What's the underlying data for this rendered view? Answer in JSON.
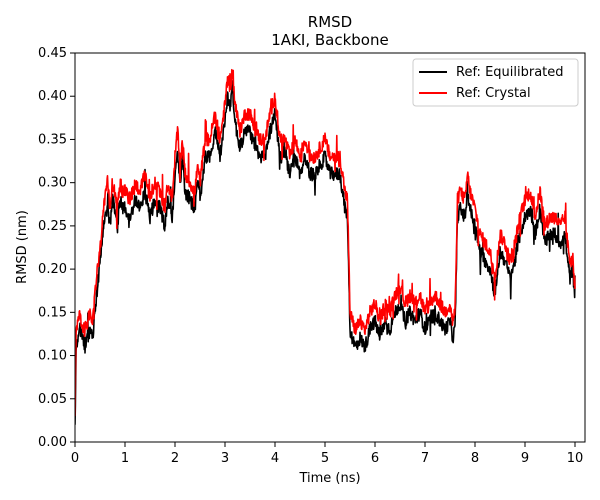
{
  "chart_data": {
    "type": "line",
    "title": "RMSD",
    "subtitle": "1AKI, Backbone",
    "xlabel": "Time (ns)",
    "ylabel": "RMSD (nm)",
    "xlim": [
      0,
      10.2
    ],
    "ylim": [
      0,
      0.45
    ],
    "xticks": [
      0,
      1,
      2,
      3,
      4,
      5,
      6,
      7,
      8,
      9,
      10
    ],
    "yticks": [
      0.0,
      0.05,
      0.1,
      0.15,
      0.2,
      0.25,
      0.3,
      0.35,
      0.4,
      0.45
    ],
    "xtick_labels": [
      "0",
      "1",
      "2",
      "3",
      "4",
      "5",
      "6",
      "7",
      "8",
      "9",
      "10"
    ],
    "ytick_labels": [
      "0.00",
      "0.05",
      "0.10",
      "0.15",
      "0.20",
      "0.25",
      "0.30",
      "0.35",
      "0.40",
      "0.45"
    ],
    "grid": false,
    "legend_position": "top-right",
    "series": [
      {
        "name": "Ref: Equilibrated",
        "color": "#000000",
        "x": [
          0,
          0.02,
          0.05,
          0.1,
          0.15,
          0.2,
          0.25,
          0.3,
          0.35,
          0.4,
          0.45,
          0.5,
          0.55,
          0.6,
          0.65,
          0.7,
          0.75,
          0.8,
          0.85,
          0.9,
          0.95,
          1.0,
          1.1,
          1.2,
          1.3,
          1.4,
          1.5,
          1.6,
          1.7,
          1.8,
          1.85,
          1.9,
          1.95,
          2.0,
          2.05,
          2.1,
          2.15,
          2.2,
          2.3,
          2.4,
          2.45,
          2.5,
          2.6,
          2.7,
          2.8,
          2.9,
          3.0,
          3.05,
          3.1,
          3.15,
          3.2,
          3.3,
          3.4,
          3.5,
          3.6,
          3.7,
          3.8,
          3.9,
          4.0,
          4.1,
          4.2,
          4.3,
          4.4,
          4.5,
          4.6,
          4.7,
          4.8,
          4.9,
          5.0,
          5.1,
          5.2,
          5.3,
          5.4,
          5.45,
          5.5,
          5.55,
          5.6,
          5.7,
          5.8,
          5.9,
          6.0,
          6.1,
          6.2,
          6.3,
          6.4,
          6.5,
          6.6,
          6.7,
          6.8,
          6.9,
          7.0,
          7.1,
          7.2,
          7.3,
          7.4,
          7.5,
          7.55,
          7.6,
          7.65,
          7.7,
          7.8,
          7.85,
          7.9,
          8.0,
          8.1,
          8.2,
          8.3,
          8.4,
          8.5,
          8.6,
          8.7,
          8.8,
          8.9,
          9.0,
          9.1,
          9.2,
          9.3,
          9.4,
          9.5,
          9.6,
          9.7,
          9.8,
          9.85,
          9.9,
          9.95,
          10.0
        ],
        "values": [
          0.02,
          0.1,
          0.12,
          0.13,
          0.12,
          0.11,
          0.12,
          0.13,
          0.12,
          0.15,
          0.18,
          0.21,
          0.24,
          0.26,
          0.27,
          0.25,
          0.28,
          0.27,
          0.25,
          0.28,
          0.27,
          0.27,
          0.26,
          0.28,
          0.27,
          0.29,
          0.26,
          0.28,
          0.27,
          0.25,
          0.28,
          0.27,
          0.26,
          0.31,
          0.33,
          0.3,
          0.33,
          0.29,
          0.28,
          0.27,
          0.3,
          0.28,
          0.33,
          0.33,
          0.36,
          0.33,
          0.37,
          0.4,
          0.39,
          0.41,
          0.37,
          0.34,
          0.36,
          0.36,
          0.34,
          0.33,
          0.33,
          0.36,
          0.38,
          0.33,
          0.33,
          0.31,
          0.33,
          0.31,
          0.33,
          0.31,
          0.31,
          0.32,
          0.33,
          0.31,
          0.31,
          0.31,
          0.27,
          0.26,
          0.13,
          0.12,
          0.11,
          0.12,
          0.11,
          0.13,
          0.14,
          0.12,
          0.14,
          0.13,
          0.15,
          0.16,
          0.14,
          0.15,
          0.14,
          0.15,
          0.13,
          0.14,
          0.15,
          0.14,
          0.13,
          0.14,
          0.12,
          0.13,
          0.26,
          0.27,
          0.26,
          0.29,
          0.27,
          0.25,
          0.22,
          0.21,
          0.2,
          0.17,
          0.22,
          0.21,
          0.19,
          0.21,
          0.24,
          0.26,
          0.27,
          0.24,
          0.27,
          0.23,
          0.24,
          0.24,
          0.23,
          0.24,
          0.21,
          0.19,
          0.2,
          0.17
        ],
        "noise": 0.008
      },
      {
        "name": "Ref: Crystal",
        "color": "#ff0000",
        "x": [
          0,
          0.02,
          0.05,
          0.1,
          0.15,
          0.2,
          0.25,
          0.3,
          0.35,
          0.4,
          0.45,
          0.5,
          0.55,
          0.6,
          0.65,
          0.7,
          0.75,
          0.8,
          0.85,
          0.9,
          0.95,
          1.0,
          1.1,
          1.2,
          1.3,
          1.4,
          1.5,
          1.6,
          1.7,
          1.8,
          1.85,
          1.9,
          1.95,
          2.0,
          2.05,
          2.1,
          2.15,
          2.2,
          2.3,
          2.4,
          2.45,
          2.5,
          2.6,
          2.7,
          2.8,
          2.9,
          3.0,
          3.05,
          3.1,
          3.15,
          3.2,
          3.3,
          3.4,
          3.5,
          3.6,
          3.7,
          3.8,
          3.9,
          4.0,
          4.1,
          4.2,
          4.3,
          4.4,
          4.5,
          4.6,
          4.7,
          4.8,
          4.9,
          5.0,
          5.1,
          5.2,
          5.3,
          5.4,
          5.45,
          5.5,
          5.55,
          5.6,
          5.7,
          5.8,
          5.9,
          6.0,
          6.1,
          6.2,
          6.3,
          6.4,
          6.5,
          6.6,
          6.7,
          6.8,
          6.9,
          7.0,
          7.1,
          7.2,
          7.3,
          7.4,
          7.5,
          7.55,
          7.6,
          7.65,
          7.7,
          7.8,
          7.85,
          7.9,
          8.0,
          8.1,
          8.2,
          8.3,
          8.4,
          8.5,
          8.6,
          8.7,
          8.8,
          8.9,
          9.0,
          9.1,
          9.2,
          9.3,
          9.4,
          9.5,
          9.6,
          9.7,
          9.8,
          9.85,
          9.9,
          9.95,
          10.0
        ],
        "values": [
          0.03,
          0.13,
          0.14,
          0.15,
          0.13,
          0.13,
          0.14,
          0.15,
          0.14,
          0.17,
          0.2,
          0.22,
          0.26,
          0.28,
          0.3,
          0.27,
          0.3,
          0.29,
          0.27,
          0.3,
          0.29,
          0.29,
          0.28,
          0.3,
          0.29,
          0.31,
          0.28,
          0.3,
          0.29,
          0.27,
          0.3,
          0.29,
          0.28,
          0.33,
          0.36,
          0.32,
          0.35,
          0.31,
          0.3,
          0.29,
          0.32,
          0.3,
          0.35,
          0.35,
          0.38,
          0.35,
          0.39,
          0.42,
          0.41,
          0.43,
          0.39,
          0.36,
          0.38,
          0.38,
          0.36,
          0.35,
          0.35,
          0.38,
          0.4,
          0.35,
          0.35,
          0.33,
          0.35,
          0.33,
          0.35,
          0.33,
          0.33,
          0.34,
          0.35,
          0.33,
          0.33,
          0.33,
          0.29,
          0.28,
          0.15,
          0.14,
          0.13,
          0.14,
          0.13,
          0.15,
          0.16,
          0.14,
          0.16,
          0.15,
          0.17,
          0.18,
          0.16,
          0.17,
          0.16,
          0.17,
          0.15,
          0.16,
          0.17,
          0.16,
          0.15,
          0.16,
          0.14,
          0.15,
          0.28,
          0.29,
          0.28,
          0.31,
          0.29,
          0.27,
          0.24,
          0.23,
          0.22,
          0.19,
          0.24,
          0.23,
          0.21,
          0.23,
          0.26,
          0.28,
          0.29,
          0.26,
          0.29,
          0.25,
          0.26,
          0.26,
          0.25,
          0.26,
          0.23,
          0.21,
          0.21,
          0.18
        ],
        "noise": 0.008
      }
    ]
  }
}
